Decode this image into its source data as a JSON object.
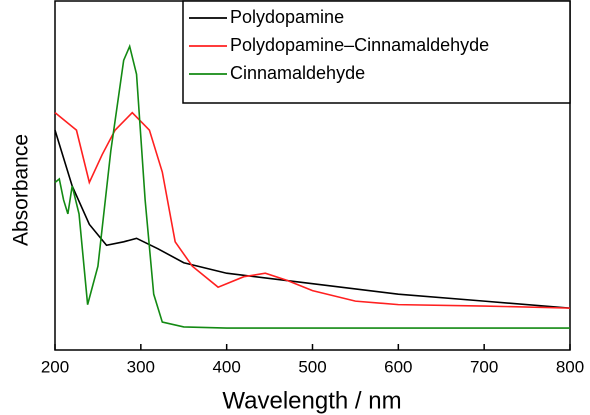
{
  "chart_data": {
    "type": "line",
    "x_label": "Wavelength / nm",
    "y_label": "Absorbance",
    "xlim": [
      200,
      800
    ],
    "xticks": [
      200,
      300,
      400,
      500,
      600,
      700,
      800
    ],
    "ylim": [
      0,
      1
    ],
    "legend": "top-right",
    "series": [
      {
        "name": "Polydopamine",
        "color": "#000000",
        "x": [
          200,
          220,
          240,
          260,
          280,
          295,
          320,
          350,
          400,
          500,
          600,
          700,
          800
        ],
        "values": [
          0.63,
          0.47,
          0.36,
          0.3,
          0.31,
          0.32,
          0.29,
          0.25,
          0.22,
          0.19,
          0.16,
          0.14,
          0.12
        ]
      },
      {
        "name": "Polydopamine–Cinnamaldehyde",
        "color": "#ff2020",
        "x": [
          200,
          210,
          225,
          240,
          255,
          270,
          290,
          310,
          325,
          340,
          360,
          390,
          420,
          445,
          470,
          500,
          550,
          600,
          700,
          800
        ],
        "values": [
          0.68,
          0.66,
          0.63,
          0.48,
          0.56,
          0.63,
          0.68,
          0.63,
          0.51,
          0.31,
          0.24,
          0.18,
          0.21,
          0.22,
          0.2,
          0.17,
          0.14,
          0.13,
          0.126,
          0.12
        ]
      },
      {
        "name": "Cinnamaldehyde",
        "color": "#138a13",
        "x": [
          200,
          205,
          210,
          215,
          220,
          228,
          238,
          250,
          265,
          280,
          287,
          295,
          305,
          315,
          325,
          350,
          400,
          800
        ],
        "values": [
          0.48,
          0.49,
          0.43,
          0.39,
          0.47,
          0.39,
          0.13,
          0.24,
          0.57,
          0.83,
          0.87,
          0.79,
          0.43,
          0.16,
          0.08,
          0.066,
          0.063,
          0.063
        ]
      }
    ]
  }
}
